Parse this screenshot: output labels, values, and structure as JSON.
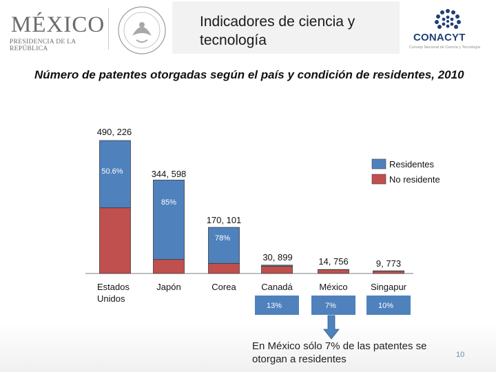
{
  "header": {
    "logo_main": "MÉXICO",
    "logo_sub": "PRESIDENCIA DE LA REPÚBLICA",
    "title": "Indicadores de ciencia y tecnología",
    "conacyt_name": "CONACYT",
    "conacyt_sub": "Consejo Nacional de Ciencia y Tecnología"
  },
  "subtitle": "Número de patentes otorgadas según el país y condición de residentes, 2010",
  "chart_data": {
    "type": "bar",
    "stacked": true,
    "categories": [
      "Estados Unidos",
      "Japón",
      "Corea",
      "Canadá",
      "México",
      "Singapur"
    ],
    "totals": [
      490226,
      344598,
      170101,
      30899,
      14756,
      9773
    ],
    "total_labels": [
      "490, 226",
      "344, 598",
      "170, 101",
      "30, 899",
      "14, 756",
      "9, 773"
    ],
    "resident_share_labels": [
      "50.6%",
      "85%",
      "78%",
      "13%",
      "7%",
      "10%"
    ],
    "resident_share": [
      50.6,
      85,
      78,
      13,
      7,
      10
    ],
    "series": [
      {
        "name": "Residentes",
        "color": "#4f81bd"
      },
      {
        "name": "No residente",
        "color": "#c0504d"
      }
    ],
    "legend_position": "top-right",
    "ylim": [
      0,
      490226
    ]
  },
  "note": "En México sólo 7% de las patentes se otorgan a residentes",
  "page_number": "10"
}
